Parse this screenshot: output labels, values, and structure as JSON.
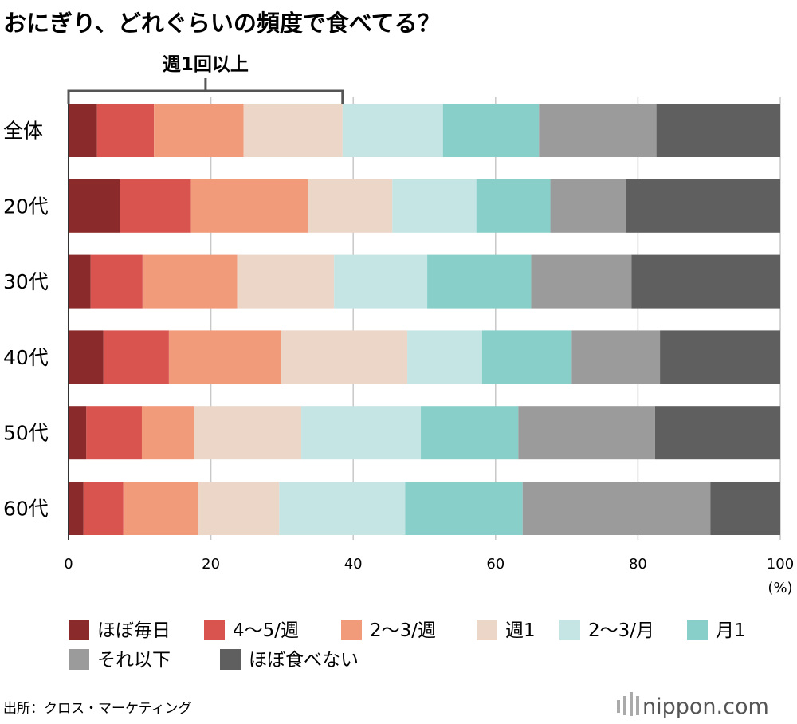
{
  "chart_data": {
    "type": "bar",
    "orientation": "horizontal",
    "stacked": true,
    "title": "おにぎり、どれぐらいの頻度で食べてる？",
    "categories": [
      "全体",
      "20代",
      "30代",
      "40代",
      "50代",
      "60代"
    ],
    "unit": "(%)",
    "xlim": [
      0,
      100
    ],
    "xticks": [
      0,
      20,
      40,
      60,
      80,
      100
    ],
    "grid": true,
    "legend_position": "bottom",
    "bracket": {
      "label": "週1回以上",
      "from": 0,
      "to": 38.5
    },
    "series": [
      {
        "name": "ほぼ毎日",
        "color": "#8b2a2a",
        "values": [
          4.0,
          7.2,
          3.1,
          4.9,
          2.5,
          2.1
        ]
      },
      {
        "name": "4〜5/週",
        "color": "#d9534f",
        "values": [
          8.0,
          10.0,
          7.3,
          9.2,
          7.8,
          5.6
        ]
      },
      {
        "name": "2〜3/週",
        "color": "#f29b7b",
        "values": [
          12.6,
          16.4,
          13.3,
          15.8,
          7.3,
          10.5
        ]
      },
      {
        "name": "週1",
        "color": "#ebd6c8",
        "values": [
          13.9,
          11.9,
          13.6,
          17.7,
          15.1,
          11.4
        ]
      },
      {
        "name": "2〜3/月",
        "color": "#c5e5e5",
        "values": [
          14.1,
          11.8,
          13.1,
          10.5,
          16.8,
          17.7
        ]
      },
      {
        "name": "月1",
        "color": "#88cfca",
        "values": [
          13.5,
          10.4,
          14.6,
          12.6,
          13.7,
          16.5
        ]
      },
      {
        "name": "それ以下",
        "color": "#9b9b9b",
        "values": [
          16.5,
          10.6,
          14.1,
          12.4,
          19.2,
          26.4
        ]
      },
      {
        "name": "ほぼ食べない",
        "color": "#5f5f5f",
        "values": [
          17.4,
          21.7,
          20.9,
          16.9,
          17.6,
          9.8
        ]
      }
    ]
  },
  "footer": {
    "source": "出所：クロス・マーケティング",
    "brand_name": "nippon",
    "brand_suffix": ".com",
    "brand_dot_color": "#e2452e"
  }
}
